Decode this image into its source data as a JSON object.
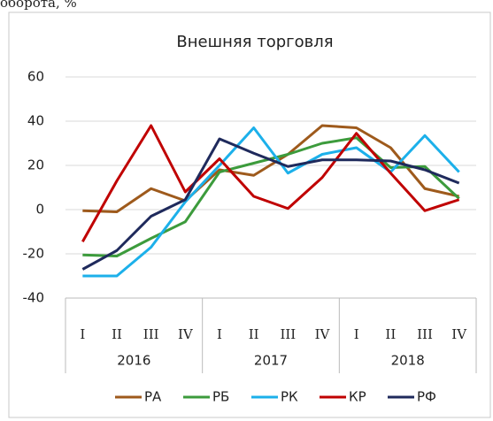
{
  "caption": "оборота, %",
  "chart_data": {
    "type": "line",
    "title": "Внешняя торговля",
    "categories": [
      "I",
      "II",
      "III",
      "IV",
      "I",
      "II",
      "III",
      "IV",
      "I",
      "II",
      "III",
      "IV"
    ],
    "groups": [
      "2016",
      "2017",
      "2018"
    ],
    "series": [
      {
        "name": "РА",
        "color": "#9e5a1c",
        "values": [
          -0.5,
          -1,
          9.5,
          4,
          18,
          15.5,
          25,
          38,
          37,
          28,
          9.5,
          6
        ]
      },
      {
        "name": "РБ",
        "color": "#3c9b3c",
        "values": [
          -20.5,
          -21,
          -13,
          -5.5,
          17,
          21,
          25,
          30,
          32.5,
          19,
          19.5,
          5
        ]
      },
      {
        "name": "РК",
        "color": "#1cb0ea",
        "values": [
          -30,
          -30,
          -17,
          3.5,
          20,
          37,
          16.5,
          25,
          28,
          17,
          33.5,
          17
        ]
      },
      {
        "name": "КР",
        "color": "#c00000",
        "values": [
          -14.5,
          13,
          38,
          8,
          23,
          6,
          0.5,
          14.5,
          34.5,
          16.5,
          -0.5,
          4.5
        ]
      },
      {
        "name": "РФ",
        "color": "#1f2a5c",
        "values": [
          -27,
          -18.5,
          -3,
          4.5,
          32,
          25.5,
          19.5,
          22.5,
          22.5,
          22,
          18,
          12
        ]
      }
    ],
    "ylim": [
      -40,
      60
    ],
    "yticks": [
      -40,
      -20,
      0,
      20,
      40,
      60
    ],
    "grid": true,
    "legend": "bottom"
  }
}
